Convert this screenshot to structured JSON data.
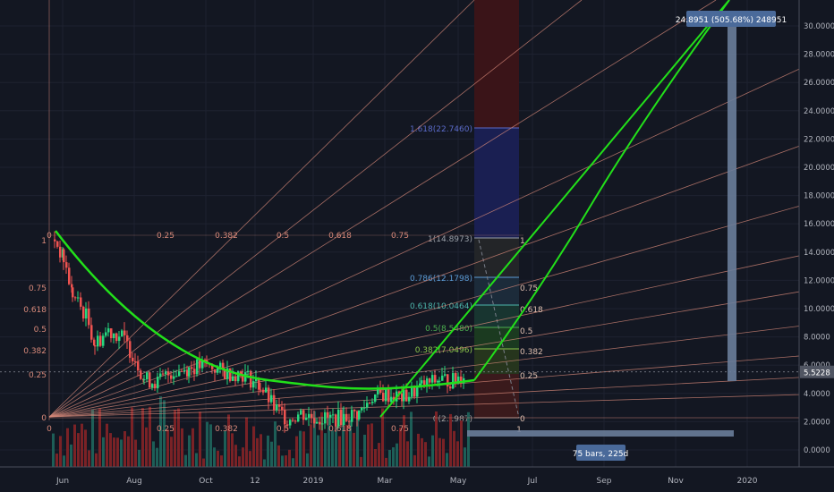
{
  "price_axis": {
    "ticks": [
      "30.0000",
      "28.0000",
      "26.0000",
      "24.0000",
      "22.0000",
      "20.0000",
      "18.0000",
      "16.0000",
      "14.0000",
      "12.0000",
      "10.0000",
      "8.0000",
      "6.0000",
      "4.0000",
      "2.0000",
      "0.0000"
    ],
    "tick_values": [
      30,
      28,
      26,
      24,
      22,
      20,
      18,
      16,
      14,
      12,
      10,
      8,
      6,
      4,
      2,
      0
    ],
    "current_price_label": "5.5228"
  },
  "time_axis": {
    "labels": [
      "Jun",
      "Aug",
      "Oct",
      "12",
      "2019",
      "Mar",
      "May",
      "Jul",
      "Sep",
      "Nov",
      "2020"
    ]
  },
  "gann_fan_left": {
    "top_labels": [
      "0",
      "0.25",
      "0.382",
      "0.5",
      "0.618",
      "0.75"
    ],
    "side_labels": [
      "1",
      "0.75",
      "0.618",
      "0.5",
      "0.382",
      "0.25",
      "0"
    ],
    "bottom_labels": [
      "0",
      "0.25",
      "0.382",
      "0.5",
      "0.618",
      "0.75"
    ]
  },
  "fib_retracement": {
    "levels": [
      {
        "label": "1.618(22.7460)",
        "color": "#5b6bc9"
      },
      {
        "label": "1(14.8973)",
        "color": "#9aa0a8"
      },
      {
        "label": "0.786(12.1798)",
        "color": "#5b9bd5"
      },
      {
        "label": "0.618(10.0464)",
        "color": "#4db6ac"
      },
      {
        "label": "0.5(8.5480)",
        "color": "#4caf50"
      },
      {
        "label": "0.382(7.0496)",
        "color": "#8bc34a"
      },
      {
        "label": "0(2.1987)",
        "color": "#9e9e9e"
      }
    ]
  },
  "fan_right_labels": [
    "1",
    "0.75",
    "0.618",
    "0.5",
    "0.382",
    "0.25",
    "0"
  ],
  "fan_right_bottom": "1",
  "measure_label": "24.8951 (505.68%) 248951",
  "bars_label": "75 bars, 225d",
  "chart_data": {
    "type": "candlestick",
    "y_range": [
      -2,
      31
    ],
    "approx_close_points": [
      {
        "x": "2018-05-27",
        "y": 14.9
      },
      {
        "x": "2018-06-15",
        "y": 10.5
      },
      {
        "x": "2018-07-01",
        "y": 8.2
      },
      {
        "x": "2018-08-01",
        "y": 8.0
      },
      {
        "x": "2018-09-01",
        "y": 5.0
      },
      {
        "x": "2018-10-01",
        "y": 6.0
      },
      {
        "x": "2018-11-15",
        "y": 3.8
      },
      {
        "x": "2018-12-15",
        "y": 2.3
      },
      {
        "x": "2019-01-15",
        "y": 2.4
      },
      {
        "x": "2019-02-15",
        "y": 3.8
      },
      {
        "x": "2019-03-15",
        "y": 4.0
      },
      {
        "x": "2019-04-15",
        "y": 5.0
      },
      {
        "x": "2019-05-10",
        "y": 5.5
      }
    ],
    "colors": {
      "up": "#26a69a",
      "down": "#ef5350",
      "green_line": "#22e01a",
      "measure_bar": "#6a7d9a"
    }
  }
}
